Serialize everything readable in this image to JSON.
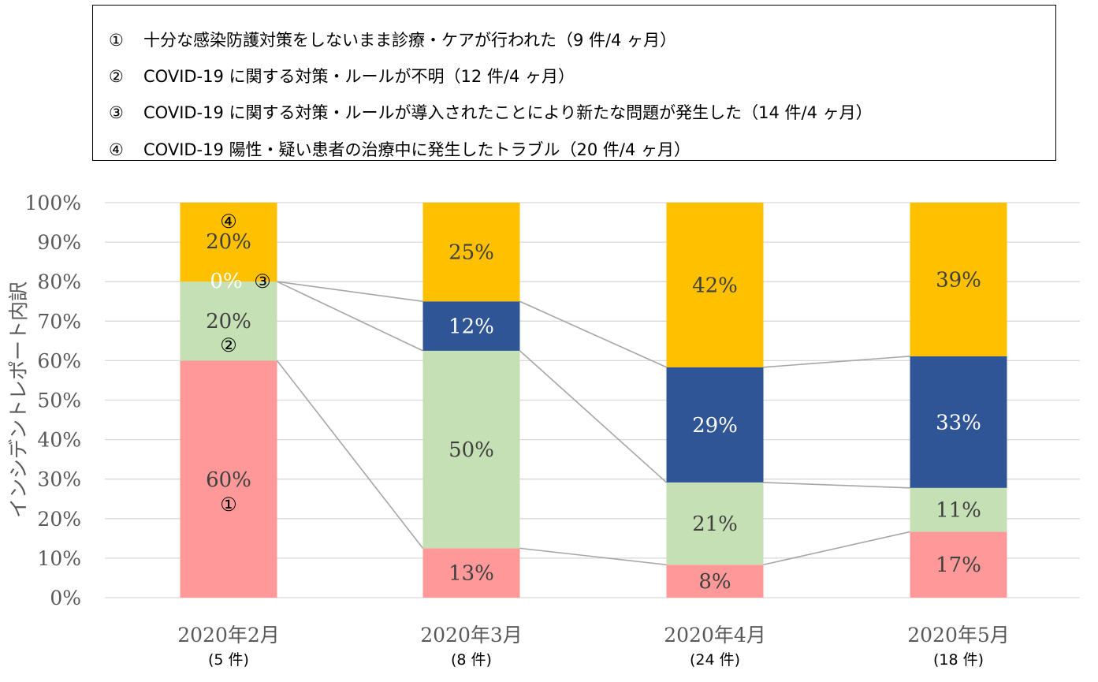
{
  "legend": [
    {
      "marker": "①",
      "text": "十分な感染防護対策をしないまま診療・ケアが行われた（9 件/4 ヶ月）"
    },
    {
      "marker": "②",
      "text": "COVID-19 に関する対策・ルールが不明（12 件/4 ヶ月）"
    },
    {
      "marker": "③",
      "text": "COVID-19 に関する対策・ルールが導入されたことにより新たな問題が発生した（14 件/4 ヶ月）"
    },
    {
      "marker": "④",
      "text": "COVID-19 陽性・疑い患者の治療中に発生したトラブル（20 件/4 ヶ月）"
    }
  ],
  "chart_data": {
    "type": "bar",
    "stacked": true,
    "percent": true,
    "ylabel": "インシデントレポート内訳",
    "ylim": [
      0,
      100
    ],
    "yticks": [
      "0%",
      "10%",
      "20%",
      "30%",
      "40%",
      "50%",
      "60%",
      "70%",
      "80%",
      "90%",
      "100%"
    ],
    "categories": [
      "2020年2月",
      "2020年3月",
      "2020年4月",
      "2020年5月"
    ],
    "category_counts": [
      "(5 件)",
      "(8 件)",
      "(24 件)",
      "(18 件)"
    ],
    "series": [
      {
        "marker": "①",
        "color": "#FF9999",
        "values": [
          60,
          12.5,
          8.33,
          16.67
        ],
        "labels": [
          "60%",
          "13%",
          "8%",
          "17%"
        ],
        "label_color": "#404040"
      },
      {
        "marker": "②",
        "color": "#C5E0B4",
        "values": [
          20,
          50,
          20.83,
          11.11
        ],
        "labels": [
          "20%",
          "50%",
          "21%",
          "11%"
        ],
        "label_color": "#404040"
      },
      {
        "marker": "③",
        "color": "#2F5597",
        "values": [
          0,
          12.5,
          29.17,
          33.33
        ],
        "labels": [
          "0%",
          "12%",
          "29%",
          "33%"
        ],
        "label_color": "#FFFFFF"
      },
      {
        "marker": "④",
        "color": "#FFC000",
        "values": [
          20,
          25,
          41.67,
          38.89
        ],
        "labels": [
          "20%",
          "25%",
          "42%",
          "39%"
        ],
        "label_color": "#404040"
      }
    ],
    "grid": true,
    "series_lines": true
  }
}
